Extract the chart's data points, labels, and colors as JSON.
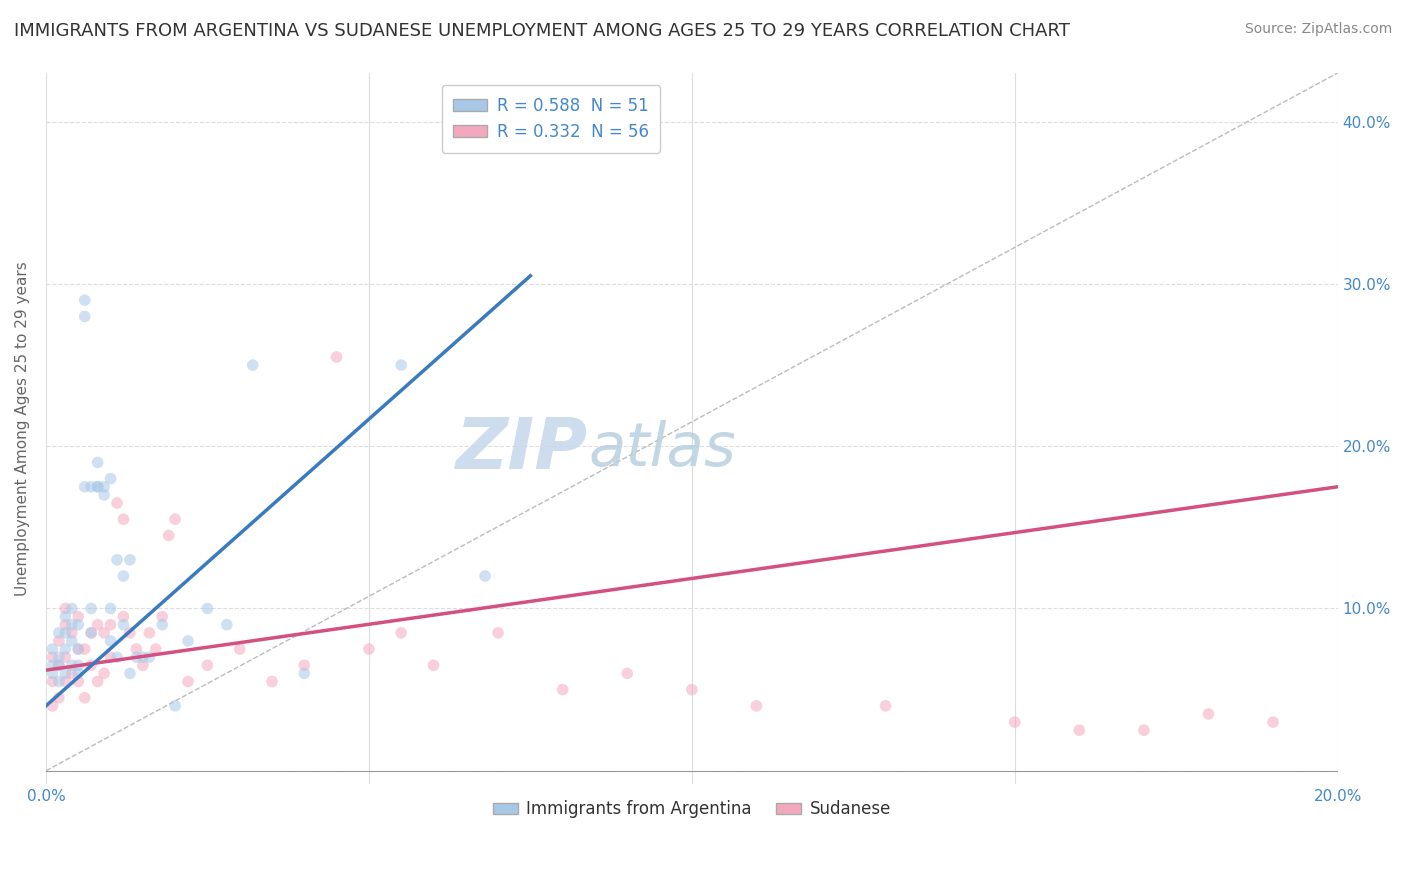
{
  "title": "IMMIGRANTS FROM ARGENTINA VS SUDANESE UNEMPLOYMENT AMONG AGES 25 TO 29 YEARS CORRELATION CHART",
  "source": "Source: ZipAtlas.com",
  "ylabel": "Unemployment Among Ages 25 to 29 years",
  "xlim": [
    0.0,
    0.2
  ],
  "ylim": [
    -0.008,
    0.43
  ],
  "xticks": [
    0.0,
    0.05,
    0.1,
    0.15,
    0.2
  ],
  "yticks": [
    0.0,
    0.1,
    0.2,
    0.3,
    0.4
  ],
  "series": [
    {
      "label": "Immigrants from Argentina",
      "R": "0.588",
      "N": "51",
      "scatter_color": "#a8c8e8",
      "trend_color": "#3a7abf",
      "x": [
        0.001,
        0.001,
        0.001,
        0.002,
        0.002,
        0.002,
        0.002,
        0.003,
        0.003,
        0.003,
        0.003,
        0.004,
        0.004,
        0.004,
        0.004,
        0.005,
        0.005,
        0.005,
        0.005,
        0.006,
        0.006,
        0.006,
        0.007,
        0.007,
        0.007,
        0.008,
        0.008,
        0.008,
        0.009,
        0.009,
        0.01,
        0.01,
        0.01,
        0.011,
        0.011,
        0.012,
        0.012,
        0.013,
        0.013,
        0.014,
        0.015,
        0.016,
        0.018,
        0.02,
        0.022,
        0.025,
        0.028,
        0.032,
        0.04,
        0.055,
        0.068
      ],
      "y": [
        0.06,
        0.065,
        0.075,
        0.055,
        0.065,
        0.07,
        0.085,
        0.06,
        0.075,
        0.085,
        0.095,
        0.065,
        0.08,
        0.09,
        0.1,
        0.065,
        0.075,
        0.09,
        0.06,
        0.175,
        0.28,
        0.29,
        0.1,
        0.175,
        0.085,
        0.175,
        0.175,
        0.19,
        0.17,
        0.175,
        0.08,
        0.1,
        0.18,
        0.07,
        0.13,
        0.09,
        0.12,
        0.06,
        0.13,
        0.07,
        0.07,
        0.07,
        0.09,
        0.04,
        0.08,
        0.1,
        0.09,
        0.25,
        0.06,
        0.25,
        0.12
      ],
      "trend_x": [
        0.0,
        0.075
      ],
      "trend_y": [
        0.04,
        0.305
      ]
    },
    {
      "label": "Sudanese",
      "R": "0.332",
      "N": "56",
      "scatter_color": "#f4a8be",
      "trend_color": "#d45080",
      "x": [
        0.001,
        0.001,
        0.001,
        0.002,
        0.002,
        0.002,
        0.003,
        0.003,
        0.003,
        0.003,
        0.004,
        0.004,
        0.005,
        0.005,
        0.005,
        0.006,
        0.006,
        0.007,
        0.007,
        0.008,
        0.008,
        0.009,
        0.009,
        0.01,
        0.01,
        0.011,
        0.012,
        0.012,
        0.013,
        0.014,
        0.015,
        0.016,
        0.017,
        0.018,
        0.019,
        0.02,
        0.022,
        0.025,
        0.03,
        0.035,
        0.04,
        0.045,
        0.05,
        0.055,
        0.06,
        0.07,
        0.08,
        0.09,
        0.1,
        0.11,
        0.13,
        0.15,
        0.16,
        0.17,
        0.18,
        0.19
      ],
      "y": [
        0.04,
        0.055,
        0.07,
        0.045,
        0.065,
        0.08,
        0.055,
        0.07,
        0.09,
        0.1,
        0.06,
        0.085,
        0.055,
        0.075,
        0.095,
        0.045,
        0.075,
        0.065,
        0.085,
        0.055,
        0.09,
        0.06,
        0.085,
        0.07,
        0.09,
        0.165,
        0.155,
        0.095,
        0.085,
        0.075,
        0.065,
        0.085,
        0.075,
        0.095,
        0.145,
        0.155,
        0.055,
        0.065,
        0.075,
        0.055,
        0.065,
        0.255,
        0.075,
        0.085,
        0.065,
        0.085,
        0.05,
        0.06,
        0.05,
        0.04,
        0.04,
        0.03,
        0.025,
        0.025,
        0.035,
        0.03
      ],
      "trend_x": [
        0.0,
        0.2
      ],
      "trend_y": [
        0.062,
        0.175
      ]
    }
  ],
  "diag_line": {
    "x": [
      0.0,
      0.2
    ],
    "y": [
      0.0,
      0.43
    ]
  },
  "watermark_zip": "ZIP",
  "watermark_atlas": "atlas",
  "watermark_color_zip": "#c5d8ea",
  "watermark_color_atlas": "#b8cfe0",
  "background_color": "#ffffff",
  "title_color": "#333333",
  "source_color": "#888888",
  "axis_color": "#4488cc",
  "grid_color": "#dddddd",
  "title_fontsize": 13,
  "source_fontsize": 10,
  "axis_label_fontsize": 11,
  "tick_fontsize": 11,
  "legend_fontsize": 12,
  "marker_size": 70,
  "marker_alpha": 0.55,
  "trend_linewidth": 2.5
}
